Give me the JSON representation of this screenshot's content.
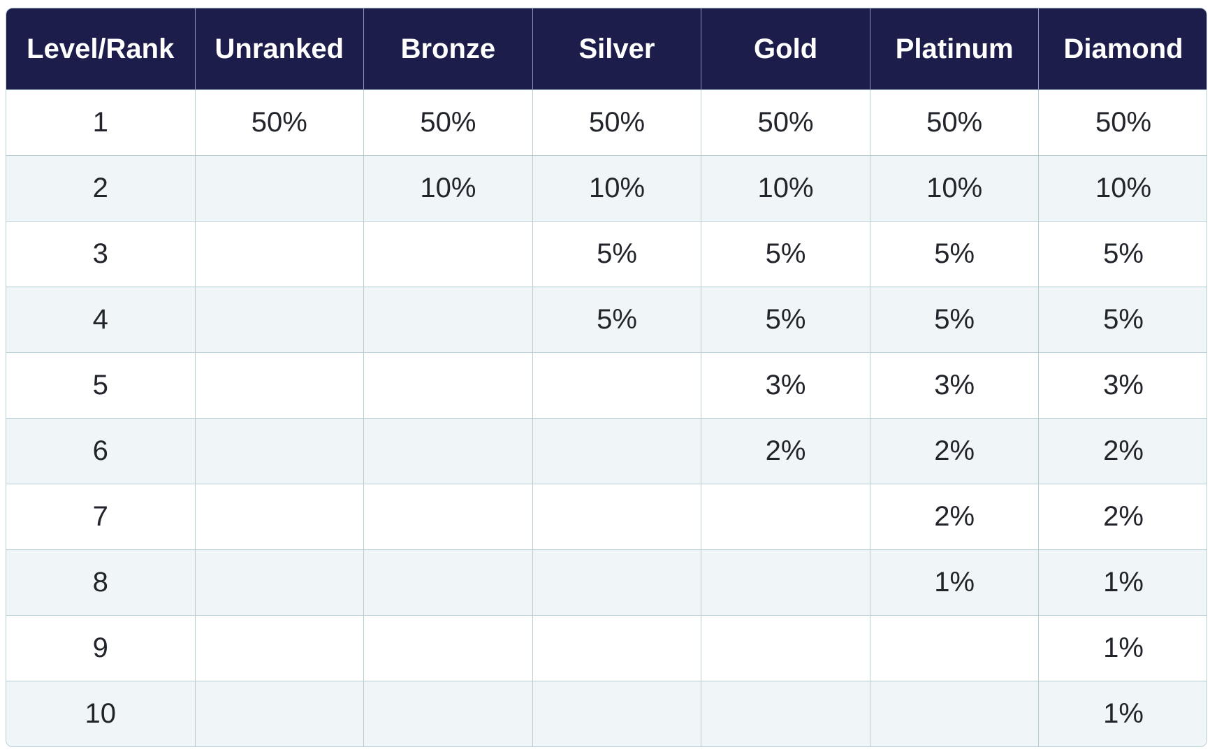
{
  "table": {
    "headers": [
      "Level/Rank",
      "Unranked",
      "Bronze",
      "Silver",
      "Gold",
      "Platinum",
      "Diamond"
    ],
    "rows": [
      [
        "1",
        "50%",
        "50%",
        "50%",
        "50%",
        "50%",
        "50%"
      ],
      [
        "2",
        "",
        "10%",
        "10%",
        "10%",
        "10%",
        "10%"
      ],
      [
        "3",
        "",
        "",
        "5%",
        "5%",
        "5%",
        "5%"
      ],
      [
        "4",
        "",
        "",
        "5%",
        "5%",
        "5%",
        "5%"
      ],
      [
        "5",
        "",
        "",
        "",
        "3%",
        "3%",
        "3%"
      ],
      [
        "6",
        "",
        "",
        "",
        "2%",
        "2%",
        "2%"
      ],
      [
        "7",
        "",
        "",
        "",
        "",
        "2%",
        "2%"
      ],
      [
        "8",
        "",
        "",
        "",
        "",
        "1%",
        "1%"
      ],
      [
        "9",
        "",
        "",
        "",
        "",
        "",
        "1%"
      ],
      [
        "10",
        "",
        "",
        "",
        "",
        "",
        "1%"
      ]
    ]
  },
  "colors": {
    "header_bg": "#1c1d4a",
    "header_text": "#ffffff",
    "row_alt_bg": "#f0f6f8",
    "border": "#b9cdd6"
  }
}
